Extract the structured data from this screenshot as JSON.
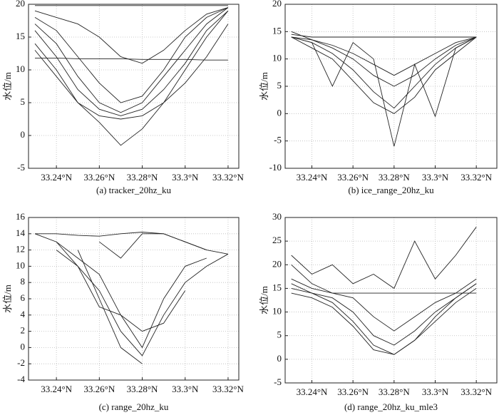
{
  "chart_data": [
    {
      "type": "line",
      "caption": "(a) tracker_20hz_ku",
      "ylabel": "水位/m",
      "grid": true,
      "xlim": [
        33.227,
        33.325
      ],
      "ylim": [
        -5,
        20
      ],
      "xticks": [
        {
          "value": 33.24,
          "label": "33.24°N"
        },
        {
          "value": 33.26,
          "label": "33.26°N"
        },
        {
          "value": 33.28,
          "label": "33.28°N"
        },
        {
          "value": 33.3,
          "label": "33.3°N"
        },
        {
          "value": 33.32,
          "label": "33.32°N"
        }
      ],
      "yticks": [
        -5,
        0,
        5,
        10,
        15,
        20
      ],
      "x": [
        33.23,
        33.24,
        33.25,
        33.26,
        33.27,
        33.28,
        33.29,
        33.3,
        33.31,
        33.32
      ],
      "series": [
        {
          "color": "#222",
          "values": [
            17,
            14,
            9,
            5,
            3.5,
            5,
            9,
            13,
            17,
            19.5
          ]
        },
        {
          "color": "#222",
          "values": [
            16,
            12,
            7,
            4,
            3,
            4,
            7,
            11,
            16,
            19
          ]
        },
        {
          "color": "#222",
          "values": [
            18,
            16,
            12,
            8,
            5,
            6,
            10,
            15,
            18,
            19.5
          ]
        },
        {
          "color": "#222",
          "values": [
            19,
            18,
            17,
            15,
            12,
            11,
            13,
            16,
            18.5,
            19.5
          ]
        },
        {
          "color": "#222",
          "values": [
            11.8,
            11.8,
            11.7,
            11.7,
            11.7,
            11.6,
            11.6,
            11.6,
            11.5,
            11.5
          ]
        },
        {
          "color": "#222",
          "values": [
            19.8,
            19.8,
            19.8,
            19.8,
            19.8,
            19.8,
            19.8,
            19.8,
            19.8,
            19.8
          ]
        },
        {
          "color": "#222",
          "values": [
            14,
            10,
            5,
            2,
            -1.5,
            1,
            5,
            10,
            15,
            19
          ]
        },
        {
          "color": "#222",
          "values": [
            13,
            9,
            5,
            3,
            2.5,
            3,
            5,
            8,
            12,
            17
          ]
        }
      ]
    },
    {
      "type": "line",
      "caption": "(b) ice_range_20hz_ku",
      "ylabel": "水位/m",
      "grid": true,
      "xlim": [
        33.227,
        33.33
      ],
      "ylim": [
        -10,
        20
      ],
      "xticks": [
        {
          "value": 33.24,
          "label": "33.24°N"
        },
        {
          "value": 33.26,
          "label": "33.26°N"
        },
        {
          "value": 33.28,
          "label": "33.28°N"
        },
        {
          "value": 33.3,
          "label": "33.3°N"
        },
        {
          "value": 33.32,
          "label": "33.32°N"
        }
      ],
      "yticks": [
        -10,
        -5,
        0,
        5,
        10,
        15,
        20
      ],
      "x": [
        33.23,
        33.24,
        33.25,
        33.26,
        33.27,
        33.28,
        33.29,
        33.3,
        33.31,
        33.32
      ],
      "series": [
        {
          "color": "#222",
          "values": [
            14.5,
            14,
            14,
            14,
            14,
            14,
            14,
            14,
            14,
            14
          ]
        },
        {
          "color": "#222",
          "values": [
            14,
            13,
            11,
            8,
            4,
            1,
            5,
            9,
            12,
            14
          ]
        },
        {
          "color": "#222",
          "values": [
            14,
            12,
            10,
            6,
            2,
            0,
            3,
            8,
            11,
            14
          ]
        },
        {
          "color": "#222",
          "values": [
            14,
            13.5,
            12,
            10,
            7,
            5,
            7,
            10,
            12.5,
            14
          ]
        },
        {
          "color": "#222",
          "values": [
            14,
            13,
            5,
            13,
            10,
            -6,
            9,
            -0.5,
            12,
            14
          ]
        },
        {
          "color": "#222",
          "values": [
            15,
            13.5,
            12.5,
            11,
            9,
            7,
            9,
            11,
            13,
            14
          ]
        }
      ]
    },
    {
      "type": "line",
      "caption": "(c) range_20hz_ku",
      "ylabel": "水位/m",
      "grid": true,
      "xlim": [
        33.227,
        33.325
      ],
      "ylim": [
        -4,
        16
      ],
      "xticks": [
        {
          "value": 33.24,
          "label": "33.24°N"
        },
        {
          "value": 33.26,
          "label": "33.26°N"
        },
        {
          "value": 33.28,
          "label": "33.28°N"
        },
        {
          "value": 33.3,
          "label": "33.3°N"
        },
        {
          "value": 33.32,
          "label": "33.32°N"
        }
      ],
      "yticks": [
        -4,
        -2,
        0,
        2,
        4,
        6,
        8,
        10,
        12,
        14,
        16
      ],
      "x": [
        33.23,
        33.24,
        33.25,
        33.26,
        33.27,
        33.28,
        33.29,
        33.3,
        33.31,
        33.32
      ],
      "series": [
        {
          "color": "#222",
          "values": [
            14,
            14,
            13.8,
            13.7,
            14,
            14.2,
            14,
            13,
            12,
            null
          ]
        },
        {
          "color": "#222",
          "values": [
            null,
            13,
            11,
            9,
            4,
            0,
            6,
            10,
            11,
            null
          ]
        },
        {
          "color": "#222",
          "values": [
            null,
            12,
            10,
            7,
            2,
            -1,
            4,
            8,
            10,
            11.5
          ]
        },
        {
          "color": "#222",
          "values": [
            null,
            null,
            12,
            6,
            0,
            -2,
            null,
            null,
            null,
            null
          ]
        },
        {
          "color": "#222",
          "values": [
            null,
            null,
            null,
            13,
            11,
            14,
            14,
            13,
            12,
            11.5
          ]
        },
        {
          "color": "#222",
          "values": [
            14,
            13,
            10,
            5,
            4,
            2,
            3,
            7,
            null,
            null
          ]
        }
      ]
    },
    {
      "type": "line",
      "caption": "(d) range_20hz_ku_mle3",
      "ylabel": "水位/m",
      "grid": true,
      "xlim": [
        33.227,
        33.33
      ],
      "ylim": [
        -5,
        30
      ],
      "xticks": [
        {
          "value": 33.24,
          "label": "33.24°N"
        },
        {
          "value": 33.26,
          "label": "33.26°N"
        },
        {
          "value": 33.28,
          "label": "33.28°N"
        },
        {
          "value": 33.3,
          "label": "33.3°N"
        },
        {
          "value": 33.32,
          "label": "33.32°N"
        }
      ],
      "yticks": [
        -5,
        0,
        5,
        10,
        15,
        20,
        25,
        30
      ],
      "x": [
        33.23,
        33.24,
        33.25,
        33.26,
        33.27,
        33.28,
        33.29,
        33.3,
        33.31,
        33.32
      ],
      "series": [
        {
          "color": "#222",
          "values": [
            16,
            14,
            13,
            10,
            5,
            3,
            6,
            10,
            13,
            16
          ]
        },
        {
          "color": "#222",
          "values": [
            17,
            15,
            14,
            13,
            9,
            6,
            9,
            12,
            14,
            17
          ]
        },
        {
          "color": "#222",
          "values": [
            15,
            14,
            12,
            8,
            3,
            1,
            4,
            9,
            13,
            16
          ]
        },
        {
          "color": "#222",
          "values": [
            20,
            16,
            14,
            14,
            14,
            14,
            14,
            14,
            14,
            14
          ]
        },
        {
          "color": "#222",
          "values": [
            22,
            18,
            20,
            16,
            18,
            15,
            25,
            17,
            22,
            28
          ]
        },
        {
          "color": "#222",
          "values": [
            14,
            13,
            11,
            7,
            2,
            1,
            4,
            8,
            12,
            15
          ]
        }
      ]
    }
  ]
}
